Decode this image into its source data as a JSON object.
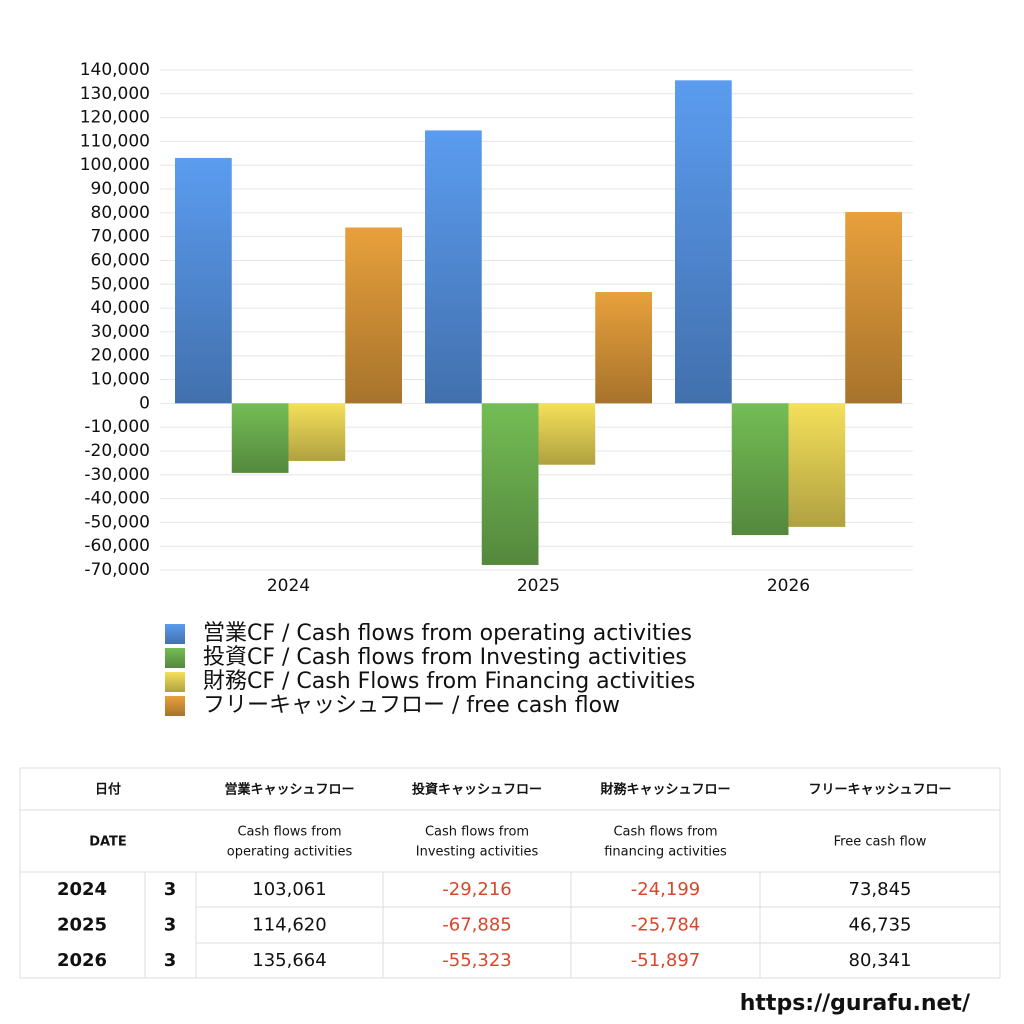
{
  "chart_data": {
    "type": "bar",
    "categories": [
      "2024",
      "2025",
      "2026"
    ],
    "series": [
      {
        "name": "営業CF / Cash flows from operating activities",
        "color": "#5b9cf0",
        "values": [
          103061,
          114620,
          135664
        ]
      },
      {
        "name": "投資CF / Cash flows from Investing activities",
        "color": "#74bd55",
        "values": [
          -29216,
          -67885,
          -55323
        ]
      },
      {
        "name": "財務CF / Cash Flows from Financing activities",
        "color": "#f4e05a",
        "values": [
          -24199,
          -25784,
          -51897
        ]
      },
      {
        "name": "フリーキャッシュフロー / free cash flow",
        "color": "#e8a03c",
        "values": [
          73845,
          46735,
          80341
        ]
      }
    ],
    "ylim": [
      -70000,
      140000
    ],
    "yticks": [
      {
        "value": -70000,
        "label": "-70,000"
      },
      {
        "value": -60000,
        "label": "-60,000"
      },
      {
        "value": -50000,
        "label": "-50,000"
      },
      {
        "value": -40000,
        "label": "-40,000"
      },
      {
        "value": -30000,
        "label": "-30,000"
      },
      {
        "value": -20000,
        "label": "-20,000"
      },
      {
        "value": -10000,
        "label": "-10,000"
      },
      0,
      {
        "value": 10000,
        "label": "10,000"
      },
      {
        "value": 20000,
        "label": "20,000"
      },
      {
        "value": 30000,
        "label": "30,000"
      },
      {
        "value": 40000,
        "label": "40,000"
      },
      {
        "value": 50000,
        "label": "50,000"
      },
      {
        "value": 60000,
        "label": "60,000"
      },
      {
        "value": 70000,
        "label": "70,000"
      },
      {
        "value": 80000,
        "label": "80,000"
      },
      {
        "value": 90000,
        "label": "90,000"
      },
      {
        "value": 100000,
        "label": "100,000"
      },
      {
        "value": 110000,
        "label": "110,000"
      },
      {
        "value": 120000,
        "label": "120,000"
      },
      {
        "value": 130000,
        "label": "130,000"
      },
      {
        "value": 140000,
        "label": "140,000"
      }
    ],
    "grid": true
  },
  "table": {
    "header": [
      [
        "日付",
        "営業キャッシュフロー",
        "投資キャッシュフロー",
        "財務キャッシュフロー",
        "フリーキャッシュフロー"
      ],
      [
        [
          "DATE"
        ],
        [
          "Cash flows from",
          "operating activities"
        ],
        [
          "Cash flows from",
          "Investing activities"
        ],
        [
          "Cash flows from",
          "financing activities"
        ],
        [
          "Free cash flow"
        ]
      ]
    ],
    "rows": [
      [
        "2024",
        "3",
        "103,061",
        "-29,216",
        "-24,199",
        "73,845"
      ],
      [
        "2025",
        "3",
        "114,620",
        "-67,885",
        "-25,784",
        "46,735"
      ],
      [
        "2026",
        "3",
        "135,664",
        "-55,323",
        "-51,897",
        "80,341"
      ]
    ]
  },
  "footer": {
    "url": "https://gurafu.net/"
  }
}
